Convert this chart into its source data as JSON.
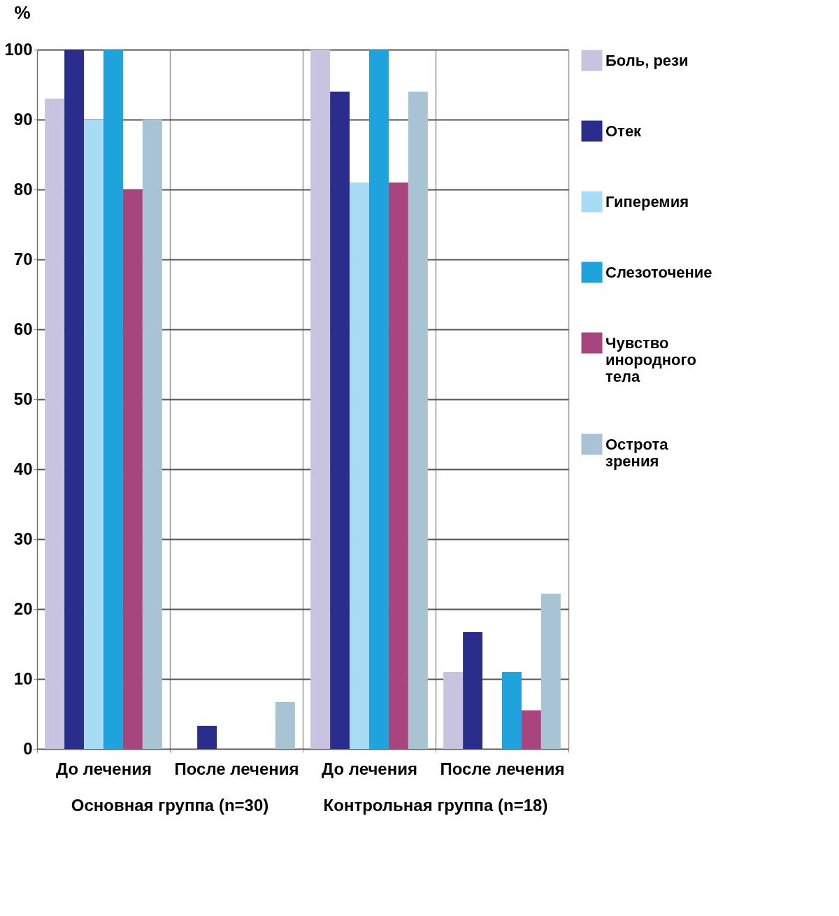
{
  "chart_data": {
    "type": "bar",
    "ylabel": "%",
    "categories": [
      "До лечения",
      "После лечения",
      "До лечения",
      "После лечения"
    ],
    "series": [
      {
        "name": "Боль, рези",
        "color": "#c8c4e0",
        "values": [
          93,
          0,
          100,
          11
        ]
      },
      {
        "name": "Отек",
        "color": "#2b2d8c",
        "values": [
          100,
          3.3,
          94,
          16.7
        ]
      },
      {
        "name": "Гиперемия",
        "color": "#a8dcf4",
        "values": [
          90,
          0,
          81,
          0
        ]
      },
      {
        "name": "Слезоточение",
        "color": "#1fa3dc",
        "values": [
          100,
          0,
          100,
          11
        ]
      },
      {
        "name": "Чувство инородного тела",
        "color": "#a8457e",
        "values": [
          80,
          0,
          81,
          5.5
        ]
      },
      {
        "name": "Острота зрения",
        "color": "#a8c4d4",
        "values": [
          90,
          6.7,
          94,
          22.2
        ]
      }
    ],
    "ylim": [
      0,
      100
    ],
    "yticks": [
      0,
      10,
      20,
      30,
      40,
      50,
      60,
      70,
      80,
      90,
      100
    ],
    "grid": true,
    "legend": "right",
    "annotations": [
      "Основная группа (n=30)",
      "Контрольная группа (n=18)"
    ]
  }
}
